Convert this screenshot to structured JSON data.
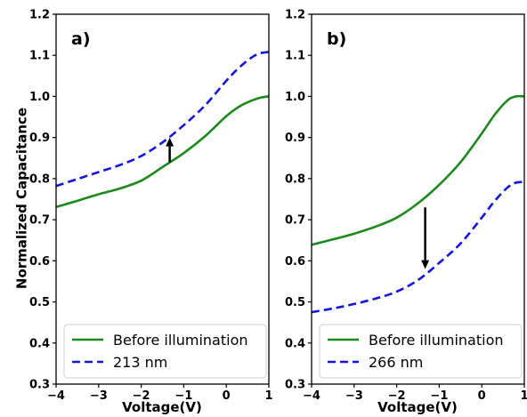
{
  "chart_data": [
    {
      "type": "line",
      "panel_label": "a)",
      "xlabel": "Voltage(V)",
      "ylabel": "Normalized Capacitance",
      "xlim": [
        -4,
        1
      ],
      "ylim": [
        0.3,
        1.2
      ],
      "xticks": [
        -4,
        -3,
        -2,
        -1,
        0,
        1
      ],
      "xtick_labels": [
        "−4",
        "−3",
        "−2",
        "−1",
        "0",
        "1"
      ],
      "yticks": [
        0.3,
        0.4,
        0.5,
        0.6,
        0.7,
        0.8,
        0.9,
        1.0,
        1.1,
        1.2
      ],
      "ytick_labels": [
        "0.3",
        "0.4",
        "0.5",
        "0.6",
        "0.7",
        "0.8",
        "0.9",
        "1.0",
        "1.1",
        "1.2"
      ],
      "grid": false,
      "legend_position": "lower-center",
      "series": [
        {
          "name": "Before illumination",
          "color": "#1a8a1a",
          "style": "solid",
          "x": [
            -4,
            -3.5,
            -3,
            -2.5,
            -2,
            -1.5,
            -1,
            -0.5,
            0,
            0.3,
            0.6,
            0.8,
            1.0
          ],
          "y": [
            0.731,
            0.746,
            0.762,
            0.776,
            0.795,
            0.828,
            0.862,
            0.903,
            0.952,
            0.975,
            0.99,
            0.997,
            1.0
          ]
        },
        {
          "name": "213 nm",
          "color": "#1515e0",
          "style": "dashed",
          "x": [
            -4,
            -3.5,
            -3,
            -2.5,
            -2,
            -1.5,
            -1,
            -0.5,
            0,
            0.3,
            0.6,
            0.8,
            1.0
          ],
          "y": [
            0.782,
            0.799,
            0.816,
            0.833,
            0.855,
            0.888,
            0.93,
            0.978,
            1.038,
            1.07,
            1.095,
            1.105,
            1.108
          ]
        }
      ],
      "annotation": {
        "type": "arrow",
        "direction": "up",
        "x": -1.33,
        "y_from": 0.84,
        "y_to": 0.9
      }
    },
    {
      "type": "line",
      "panel_label": "b)",
      "xlabel": "Voltage(V)",
      "ylabel": "",
      "xlim": [
        -4,
        1
      ],
      "ylim": [
        0.3,
        1.2
      ],
      "xticks": [
        -4,
        -3,
        -2,
        -1,
        0,
        1
      ],
      "xtick_labels": [
        "−4",
        "−3",
        "−2",
        "−1",
        "0",
        "1"
      ],
      "yticks": [
        0.3,
        0.4,
        0.5,
        0.6,
        0.7,
        0.8,
        0.9,
        1.0,
        1.1,
        1.2
      ],
      "ytick_labels": [
        "0.3",
        "0.4",
        "0.5",
        "0.6",
        "0.7",
        "0.8",
        "0.9",
        "1.0",
        "1.1",
        "1.2"
      ],
      "grid": false,
      "legend_position": "lower-center",
      "series": [
        {
          "name": "Before illumination",
          "color": "#1a8a1a",
          "style": "solid",
          "x": [
            -4,
            -3.5,
            -3,
            -2.5,
            -2,
            -1.5,
            -1,
            -0.5,
            0,
            0.3,
            0.6,
            0.8,
            1.0
          ],
          "y": [
            0.639,
            0.652,
            0.666,
            0.683,
            0.705,
            0.74,
            0.785,
            0.84,
            0.91,
            0.955,
            0.99,
            1.0,
            1.0
          ]
        },
        {
          "name": "266 nm",
          "color": "#1515e0",
          "style": "dashed",
          "x": [
            -4,
            -3.5,
            -3,
            -2.5,
            -2,
            -1.5,
            -1,
            -0.5,
            0,
            0.3,
            0.6,
            0.8,
            1.0
          ],
          "y": [
            0.475,
            0.484,
            0.495,
            0.508,
            0.525,
            0.553,
            0.595,
            0.642,
            0.705,
            0.745,
            0.778,
            0.79,
            0.792
          ]
        }
      ],
      "annotation": {
        "type": "arrow",
        "direction": "down",
        "x": -1.33,
        "y_from": 0.73,
        "y_to": 0.58
      }
    }
  ]
}
